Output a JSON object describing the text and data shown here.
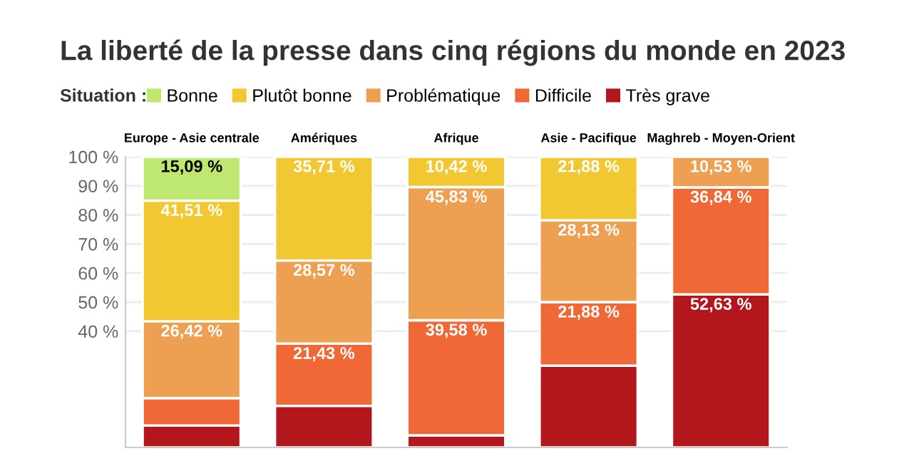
{
  "chart_data": {
    "type": "bar",
    "stacked": true,
    "title": "La liberté de la presse dans cinq régions du monde en 2023",
    "legend_title": "Situation :",
    "legend": "top",
    "categories": [
      "Europe - Asie centrale",
      "Amériques",
      "Afrique",
      "Asie - Pacifique",
      "Maghreb - Moyen-Orient"
    ],
    "series": [
      {
        "name": "Très grave",
        "color": "#b3171b",
        "values": [
          7.55,
          14.29,
          4.17,
          28.12,
          52.63
        ],
        "value_labels": [
          null,
          null,
          null,
          null,
          "52,63 %"
        ]
      },
      {
        "name": "Difficile",
        "color": "#f06835",
        "values": [
          9.43,
          21.43,
          39.58,
          21.88,
          36.84
        ],
        "value_labels": [
          null,
          "21,43 %",
          "39,58 %",
          "21,88 %",
          "36,84 %"
        ]
      },
      {
        "name": "Problématique",
        "color": "#eea052",
        "values": [
          26.42,
          28.57,
          45.83,
          28.13,
          10.53
        ],
        "value_labels": [
          "26,42 %",
          "28,57 %",
          "45,83 %",
          "28,13 %",
          "10,53 %"
        ]
      },
      {
        "name": "Plutôt bonne",
        "color": "#f2c832",
        "values": [
          41.51,
          35.71,
          10.42,
          21.88,
          null
        ],
        "value_labels": [
          "41,51 %",
          "35,71 %",
          "10,42 %",
          "21,88 %",
          null
        ]
      },
      {
        "name": "Bonne",
        "color": "#bfe870",
        "values": [
          15.09,
          null,
          null,
          null,
          null
        ],
        "value_labels": [
          "15,09 %",
          null,
          null,
          null,
          null
        ]
      }
    ],
    "ylim": [
      0,
      100
    ],
    "yticks": [
      {
        "value": 40,
        "label": "40 %"
      },
      {
        "value": 50,
        "label": "50 %"
      },
      {
        "value": 60,
        "label": "60 %"
      },
      {
        "value": 70,
        "label": "70 %"
      },
      {
        "value": 80,
        "label": "80 %"
      },
      {
        "value": 90,
        "label": "90 %"
      },
      {
        "value": 100,
        "label": "100 %"
      }
    ],
    "grid": true
  }
}
